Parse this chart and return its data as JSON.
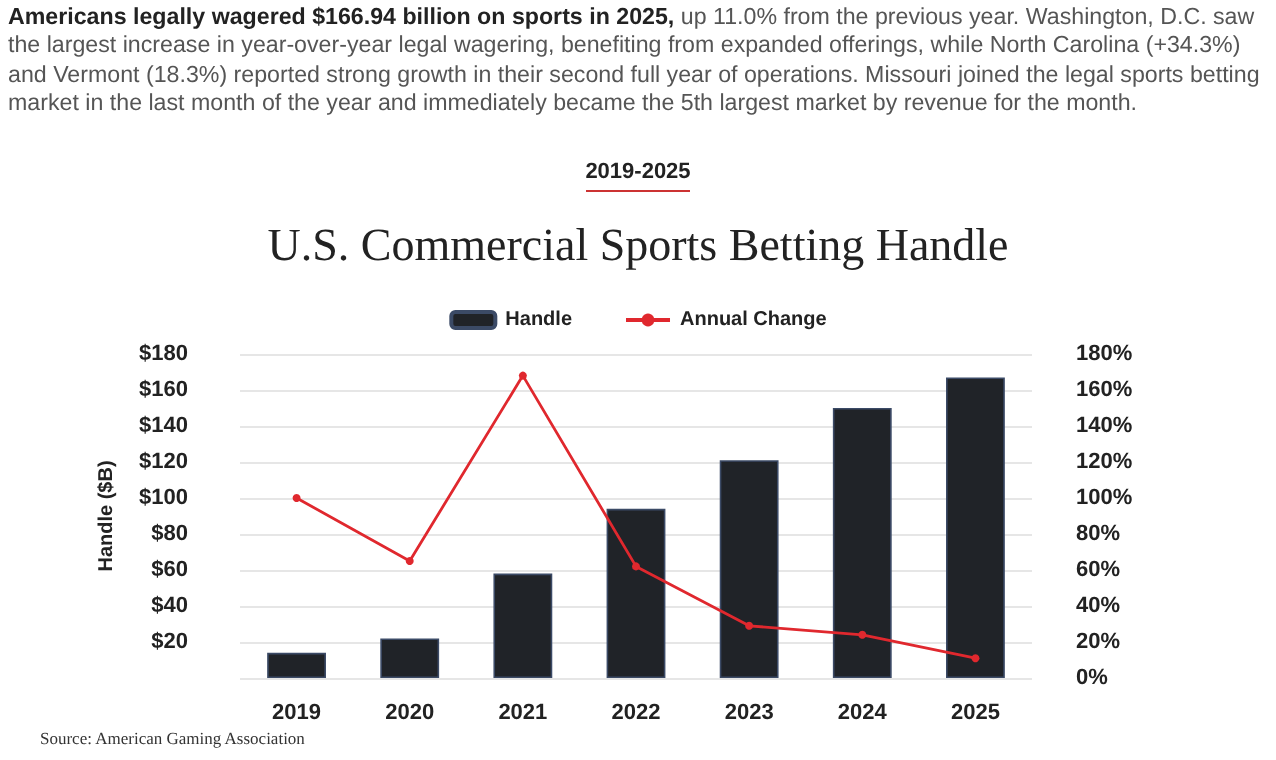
{
  "chart_data": {
    "type": "bar",
    "title": "U.S. Commercial Sports Betting Handle",
    "subtitle": "2019-2025",
    "ylabel": "Handle ($B)",
    "annotations": [
      "Americans legally wagered $166.94 billion on sports in 2025,",
      "up 11.0% from the previous year. Washington, D.C. saw the largest increase in year-over-year legal wagering, benefiting from expanded offerings, while North Carolina (+34.3%) and Vermont (18.3%) reported strong growth in their second full year of operations. Missouri joined the legal sports betting market in the last month of the year and immediately became the 5th largest market by revenue for the month.",
      "Source: American Gaming Association"
    ],
    "categories": [
      "2019",
      "2020",
      "2021",
      "2022",
      "2023",
      "2024",
      "2025"
    ],
    "series": [
      {
        "name": "Handle",
        "color": "#202328",
        "values": [
          14,
          22,
          58,
          94,
          121,
          150,
          167
        ]
      },
      {
        "name": "Annual Change",
        "type": "line",
        "axis": "y2",
        "color": "#e0282e",
        "values": [
          100,
          65,
          168,
          62,
          29,
          24,
          11
        ]
      }
    ],
    "ylim": [
      0,
      180
    ],
    "yticks": [
      {
        "value": 0,
        "label": null
      },
      {
        "value": 20,
        "label": "$20"
      },
      {
        "value": 40,
        "label": "$40"
      },
      {
        "value": 60,
        "label": "$60"
      },
      {
        "value": 80,
        "label": "$80"
      },
      {
        "value": 100,
        "label": "$100"
      },
      {
        "value": 120,
        "label": "$120"
      },
      {
        "value": 140,
        "label": "$140"
      },
      {
        "value": 160,
        "label": "$160"
      },
      {
        "value": 180,
        "label": "$180"
      }
    ],
    "y2lim": [
      0,
      180
    ],
    "y2ticks": [
      {
        "value": 0,
        "label": "0%"
      },
      {
        "value": 20,
        "label": "20%"
      },
      {
        "value": 40,
        "label": "40%"
      },
      {
        "value": 60,
        "label": "60%"
      },
      {
        "value": 80,
        "label": "80%"
      },
      {
        "value": 100,
        "label": "100%"
      },
      {
        "value": 120,
        "label": "120%"
      },
      {
        "value": 140,
        "label": "140%"
      },
      {
        "value": 160,
        "label": "160%"
      },
      {
        "value": 180,
        "label": "180%"
      }
    ],
    "grid": "y",
    "legend": "top",
    "marker": "circle",
    "line_style": "solid"
  }
}
